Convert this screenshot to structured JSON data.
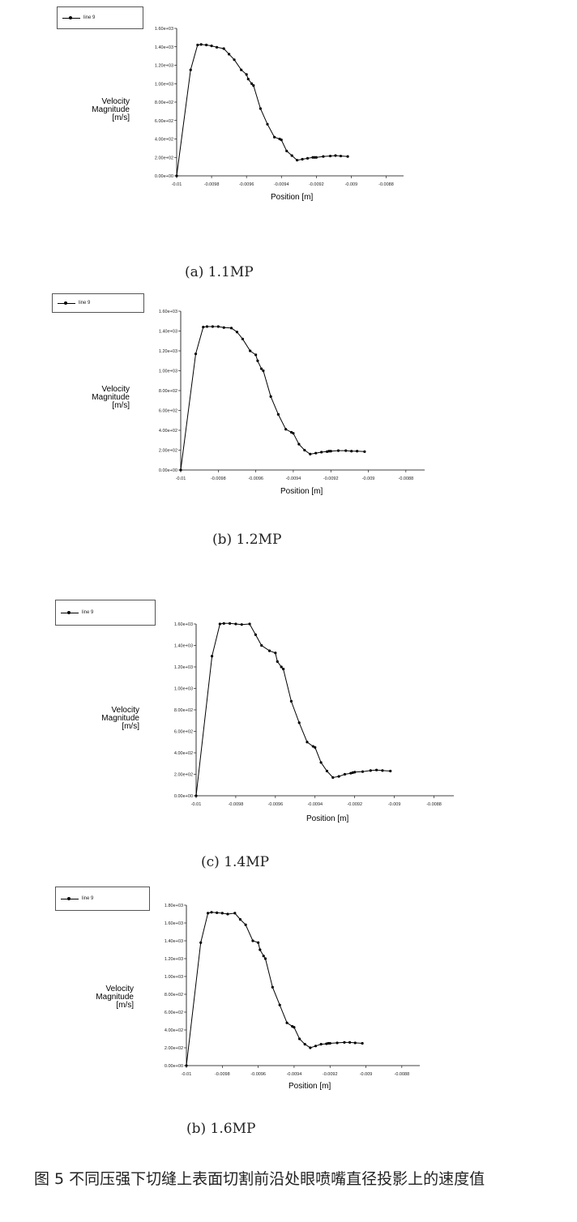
{
  "figure_caption": "图 5 不同压强下切缝上表面切割前沿处眼喷嘴直径投影上的速度值",
  "chart_data": [
    {
      "type": "line",
      "caption": "(a) 1.1MP",
      "legend": "line 9",
      "xlabel": "Position [m]",
      "ylabel": "Velocity\nMagnitude\n[m/s]",
      "xlim": [
        -0.01,
        -0.0087
      ],
      "ylim": [
        0,
        1600
      ],
      "xticks": [
        -0.01,
        -0.0098,
        -0.0096,
        -0.0094,
        -0.0092,
        -0.009,
        -0.0088
      ],
      "xtick_labels": [
        "-0.01",
        "-0.0098",
        "-0.0096",
        "-0.0094",
        "-0.0092",
        "-0.009",
        "-0.0088"
      ],
      "yticks": [
        0,
        200,
        400,
        600,
        800,
        1000,
        1200,
        1400,
        1600
      ],
      "ytick_labels": [
        "0.00e+00",
        "2.00e+02",
        "4.00e+02",
        "6.00e+02",
        "8.00e+02",
        "1.00e+03",
        "1.20e+03",
        "1.40e+03",
        "1.60e+03"
      ],
      "series": [
        {
          "name": "line 9",
          "x": [
            -0.01,
            -0.00992,
            -0.00988,
            -0.00986,
            -0.00983,
            -0.0098,
            -0.00977,
            -0.00973,
            -0.0097,
            -0.00967,
            -0.00963,
            -0.0096,
            -0.00959,
            -0.00957,
            -0.00956,
            -0.00952,
            -0.00948,
            -0.00944,
            -0.00941,
            -0.0094,
            -0.00937,
            -0.00934,
            -0.00931,
            -0.00928,
            -0.00925,
            -0.00922,
            -0.00921,
            -0.0092,
            -0.00916,
            -0.00912,
            -0.00909,
            -0.00906,
            -0.00902
          ],
          "y": [
            0,
            1150,
            1420,
            1425,
            1420,
            1410,
            1395,
            1380,
            1320,
            1260,
            1150,
            1100,
            1050,
            1000,
            980,
            730,
            560,
            420,
            400,
            390,
            270,
            220,
            170,
            180,
            190,
            200,
            200,
            200,
            210,
            215,
            220,
            215,
            210
          ]
        }
      ]
    },
    {
      "type": "line",
      "caption": "(b) 1.2MP",
      "legend": "line 9",
      "xlabel": "Position [m]",
      "ylabel": "Velocity\nMagnitude\n[m/s]",
      "xlim": [
        -0.01,
        -0.0087
      ],
      "ylim": [
        0,
        1600
      ],
      "xticks": [
        -0.01,
        -0.0098,
        -0.0096,
        -0.0094,
        -0.0092,
        -0.009,
        -0.0088
      ],
      "xtick_labels": [
        "-0.01",
        "-0.0098",
        "-0.0096",
        "-0.0094",
        "-0.0092",
        "-0.009",
        "-0.0088"
      ],
      "yticks": [
        0,
        200,
        400,
        600,
        800,
        1000,
        1200,
        1400,
        1600
      ],
      "ytick_labels": [
        "0.00e+00",
        "2.00e+02",
        "4.00e+02",
        "6.00e+02",
        "8.00e+02",
        "1.00e+03",
        "1.20e+03",
        "1.40e+03",
        "1.60e+03"
      ],
      "series": [
        {
          "name": "line 9",
          "x": [
            -0.01,
            -0.00992,
            -0.00988,
            -0.00986,
            -0.00983,
            -0.0098,
            -0.00977,
            -0.00973,
            -0.0097,
            -0.00967,
            -0.00963,
            -0.0096,
            -0.00959,
            -0.00957,
            -0.00956,
            -0.00952,
            -0.00948,
            -0.00944,
            -0.00941,
            -0.0094,
            -0.00937,
            -0.00934,
            -0.00931,
            -0.00928,
            -0.00925,
            -0.00922,
            -0.00921,
            -0.0092,
            -0.00916,
            -0.00912,
            -0.00909,
            -0.00906,
            -0.00902
          ],
          "y": [
            0,
            1170,
            1440,
            1445,
            1445,
            1445,
            1435,
            1430,
            1390,
            1320,
            1200,
            1160,
            1100,
            1020,
            1000,
            740,
            560,
            410,
            380,
            370,
            260,
            200,
            160,
            170,
            180,
            185,
            190,
            190,
            195,
            195,
            190,
            190,
            185
          ]
        }
      ]
    },
    {
      "type": "line",
      "caption": "(c) 1.4MP",
      "legend": "line 9",
      "xlabel": "Position [m]",
      "ylabel": "Velocity\nMagnitude\n[m/s]",
      "xlim": [
        -0.01,
        -0.0087
      ],
      "ylim": [
        0,
        1600
      ],
      "xticks": [
        -0.01,
        -0.0098,
        -0.0096,
        -0.0094,
        -0.0092,
        -0.009,
        -0.0088
      ],
      "xtick_labels": [
        "-0.01",
        "-0.0098",
        "-0.0096",
        "-0.0094",
        "-0.0092",
        "-0.009",
        "-0.0088"
      ],
      "yticks": [
        0,
        200,
        400,
        600,
        800,
        1000,
        1200,
        1400,
        1600
      ],
      "ytick_labels": [
        "0.00e+00",
        "2.00e+02",
        "4.00e+02",
        "6.00e+02",
        "8.00e+02",
        "1.00e+03",
        "1.20e+03",
        "1.40e+03",
        "1.60e+03"
      ],
      "series": [
        {
          "name": "line 9",
          "x": [
            -0.01,
            -0.00992,
            -0.00988,
            -0.00986,
            -0.00983,
            -0.0098,
            -0.00977,
            -0.00973,
            -0.0097,
            -0.00967,
            -0.00963,
            -0.0096,
            -0.00959,
            -0.00957,
            -0.00956,
            -0.00952,
            -0.00948,
            -0.00944,
            -0.00941,
            -0.0094,
            -0.00937,
            -0.00934,
            -0.00931,
            -0.00928,
            -0.00925,
            -0.00922,
            -0.00921,
            -0.0092,
            -0.00916,
            -0.00912,
            -0.00909,
            -0.00906,
            -0.00902
          ],
          "y": [
            0,
            1300,
            1600,
            1605,
            1605,
            1600,
            1595,
            1600,
            1500,
            1400,
            1350,
            1330,
            1250,
            1200,
            1180,
            880,
            680,
            500,
            460,
            450,
            310,
            230,
            170,
            180,
            200,
            210,
            215,
            220,
            225,
            235,
            240,
            235,
            230
          ]
        }
      ]
    },
    {
      "type": "line",
      "caption": "(b) 1.6MP",
      "legend": "line 9",
      "xlabel": "Position [m]",
      "ylabel": "Velocity\nMagnitude\n[m/s]",
      "xlim": [
        -0.01,
        -0.0087
      ],
      "ylim": [
        0,
        1800
      ],
      "xticks": [
        -0.01,
        -0.0098,
        -0.0096,
        -0.0094,
        -0.0092,
        -0.009,
        -0.0088
      ],
      "xtick_labels": [
        "-0.01",
        "-0.0098",
        "-0.0096",
        "-0.0094",
        "-0.0092",
        "-0.009",
        "-0.0088"
      ],
      "yticks": [
        0,
        200,
        400,
        600,
        800,
        1000,
        1200,
        1400,
        1600,
        1800
      ],
      "ytick_labels": [
        "0.00e+00",
        "2.00e+02",
        "4.00e+02",
        "6.00e+02",
        "8.00e+02",
        "1.00e+03",
        "1.20e+03",
        "1.40e+03",
        "1.60e+03",
        "1.80e+03"
      ],
      "series": [
        {
          "name": "line 9",
          "x": [
            -0.01,
            -0.00992,
            -0.00988,
            -0.00986,
            -0.00983,
            -0.0098,
            -0.00977,
            -0.00973,
            -0.0097,
            -0.00967,
            -0.00963,
            -0.0096,
            -0.00959,
            -0.00957,
            -0.00956,
            -0.00952,
            -0.00948,
            -0.00944,
            -0.00941,
            -0.0094,
            -0.00937,
            -0.00934,
            -0.00931,
            -0.00928,
            -0.00925,
            -0.00922,
            -0.00921,
            -0.0092,
            -0.00916,
            -0.00912,
            -0.00909,
            -0.00906,
            -0.00902
          ],
          "y": [
            0,
            1380,
            1710,
            1720,
            1715,
            1710,
            1700,
            1710,
            1640,
            1580,
            1400,
            1380,
            1300,
            1230,
            1200,
            880,
            680,
            480,
            440,
            430,
            300,
            240,
            200,
            220,
            240,
            245,
            250,
            250,
            255,
            260,
            260,
            255,
            250
          ]
        }
      ]
    }
  ]
}
